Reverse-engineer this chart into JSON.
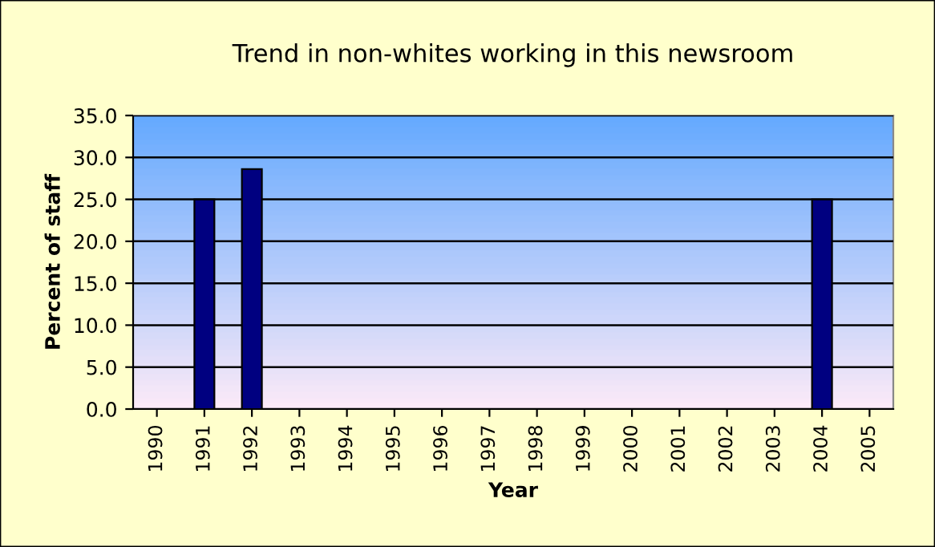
{
  "chart_data": {
    "type": "bar",
    "title": "Trend in non-whites working in this newsroom",
    "xlabel": "Year",
    "ylabel": "Percent of staff",
    "categories": [
      "1990",
      "1991",
      "1992",
      "1993",
      "1994",
      "1995",
      "1996",
      "1997",
      "1998",
      "1999",
      "2000",
      "2001",
      "2002",
      "2003",
      "2004",
      "2005"
    ],
    "values": [
      null,
      25.0,
      28.6,
      null,
      null,
      null,
      null,
      null,
      null,
      null,
      null,
      null,
      null,
      null,
      25.0,
      null
    ],
    "color": "#000080",
    "ylim": [
      0,
      35
    ],
    "yticks": [
      {
        "value": 0,
        "label": "0.0"
      },
      {
        "value": 5,
        "label": "5.0"
      },
      {
        "value": 10,
        "label": "10.0"
      },
      {
        "value": 15,
        "label": "15.0"
      },
      {
        "value": 20,
        "label": "20.0"
      },
      {
        "value": 25,
        "label": "25.0"
      },
      {
        "value": 30,
        "label": "30.0"
      },
      {
        "value": 35,
        "label": "35.0"
      }
    ],
    "grid": "y"
  }
}
